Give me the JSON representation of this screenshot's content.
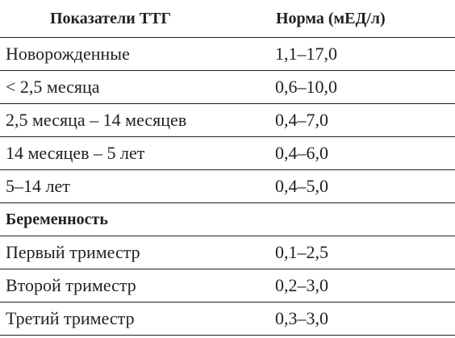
{
  "header": {
    "col1": "Показатели ТТГ",
    "col2": "Норма (мЕД/л)"
  },
  "rows": [
    {
      "label": "Новорожденные",
      "value": "1,1–17,0"
    },
    {
      "label": "< 2,5 месяца",
      "value": "0,6–10,0"
    },
    {
      "label": "2,5 месяца – 14 месяцев",
      "value": "0,4–7,0"
    },
    {
      "label": "14 месяцев – 5 лет",
      "value": "0,4–6,0"
    },
    {
      "label": "5–14 лет",
      "value": "0,4–5,0"
    }
  ],
  "section": {
    "label": "Беременность"
  },
  "pregnancy_rows": [
    {
      "label": "Первый триместр",
      "value": "0,1–2,5"
    },
    {
      "label": "Второй триместр",
      "value": "0,2–3,0"
    },
    {
      "label": "Третий триместр",
      "value": "0,3–3,0"
    }
  ]
}
